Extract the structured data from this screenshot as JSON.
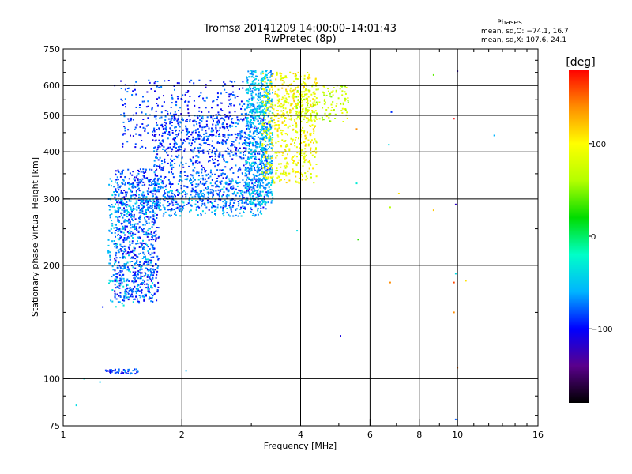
{
  "chart_data": {
    "type": "scatter",
    "title": "Tromsø 20141209  14:00:00–14:01:43",
    "subtitle": "RwPretec (8p)",
    "xlabel": "Frequency [MHz]",
    "ylabel": "Stationary phase Virtual Height [km]",
    "x_scale": "log",
    "y_scale": "log",
    "xlim": [
      1,
      16
    ],
    "ylim": [
      75,
      750
    ],
    "x_ticks": [
      1,
      2,
      4,
      6,
      8,
      10,
      16
    ],
    "x_tick_labels": [
      "1",
      "2",
      "4",
      "6",
      "8",
      "10",
      "16"
    ],
    "y_ticks": [
      75,
      100,
      200,
      300,
      400,
      500,
      600,
      750
    ],
    "y_tick_labels": [
      "75",
      "100",
      "200",
      "300",
      "400",
      "500",
      "600",
      "750"
    ],
    "grid": true,
    "phases": {
      "heading": "Phases",
      "line_o": "mean, sd,O: −74.1, 16.7",
      "line_x": "mean, sd,X: 107.6, 24.1"
    },
    "colorbar": {
      "label": "[deg]",
      "range": [
        -180,
        180
      ],
      "ticks": [
        100,
        0,
        -100
      ],
      "tick_labels": [
        "100",
        "0",
        "−100"
      ],
      "colors": [
        "#000000",
        "#5a008c",
        "#0000ff",
        "#00b4ff",
        "#00ffc8",
        "#00dc00",
        "#b4ff00",
        "#ffff00",
        "#ff8c00",
        "#ff0000"
      ]
    },
    "clusters": [
      {
        "name": "E-layer trace",
        "x": [
          1.28,
          1.55
        ],
        "y": [
          103,
          106
        ],
        "phase": -90,
        "count": 45
      },
      {
        "name": "Lower F trace",
        "x": [
          1.35,
          1.75
        ],
        "y": [
          160,
          360
        ],
        "phase": -90,
        "count": 650
      },
      {
        "name": "Lower F trace (cyan)",
        "x": [
          1.3,
          1.7
        ],
        "y": [
          155,
          300
        ],
        "phase": -55,
        "count": 250
      },
      {
        "name": "F2 ordinary band",
        "x": [
          1.3,
          3.2
        ],
        "y": [
          270,
          340
        ],
        "phase": -60,
        "count": 420
      },
      {
        "name": "F2 ordinary trace",
        "x": [
          1.7,
          3.3
        ],
        "y": [
          280,
          500
        ],
        "phase": -85,
        "count": 900
      },
      {
        "name": "F2 ordinary upper",
        "x": [
          1.4,
          2.9
        ],
        "y": [
          400,
          620
        ],
        "phase": -90,
        "count": 380
      },
      {
        "name": "F2 critical region",
        "x": [
          2.9,
          3.4
        ],
        "y": [
          290,
          660
        ],
        "phase": -55,
        "count": 700
      },
      {
        "name": "F2 extraordinary trace",
        "x": [
          3.2,
          4.4
        ],
        "y": [
          330,
          650
        ],
        "phase": 95,
        "count": 600
      },
      {
        "name": "F2 extraordinary tail",
        "x": [
          3.9,
          5.3
        ],
        "y": [
          480,
          600
        ],
        "phase": 70,
        "count": 140
      }
    ],
    "isolated_points": [
      {
        "x": 1.13,
        "y": 100,
        "phase": -30
      },
      {
        "x": 1.08,
        "y": 85,
        "phase": -40
      },
      {
        "x": 1.24,
        "y": 98,
        "phase": -50
      },
      {
        "x": 1.26,
        "y": 155,
        "phase": -95
      },
      {
        "x": 2.05,
        "y": 105,
        "phase": -60
      },
      {
        "x": 1.35,
        "y": 600,
        "phase": -100
      },
      {
        "x": 3.92,
        "y": 247,
        "phase": -40
      },
      {
        "x": 5.05,
        "y": 130,
        "phase": -110
      },
      {
        "x": 5.55,
        "y": 460,
        "phase": 140
      },
      {
        "x": 5.55,
        "y": 330,
        "phase": -30
      },
      {
        "x": 5.6,
        "y": 234,
        "phase": 30
      },
      {
        "x": 6.7,
        "y": 418,
        "phase": -40
      },
      {
        "x": 6.75,
        "y": 285,
        "phase": 60
      },
      {
        "x": 6.75,
        "y": 180,
        "phase": 140
      },
      {
        "x": 6.8,
        "y": 510,
        "phase": -90
      },
      {
        "x": 7.1,
        "y": 310,
        "phase": 110
      },
      {
        "x": 8.7,
        "y": 640,
        "phase": 40
      },
      {
        "x": 8.7,
        "y": 280,
        "phase": 120
      },
      {
        "x": 9.8,
        "y": 490,
        "phase": 180
      },
      {
        "x": 9.8,
        "y": 180,
        "phase": 160
      },
      {
        "x": 9.8,
        "y": 150,
        "phase": 140
      },
      {
        "x": 9.9,
        "y": 290,
        "phase": -120
      },
      {
        "x": 9.9,
        "y": 190,
        "phase": -40
      },
      {
        "x": 10.0,
        "y": 655,
        "phase": -120
      },
      {
        "x": 10.0,
        "y": 107,
        "phase": 150
      },
      {
        "x": 9.9,
        "y": 78,
        "phase": -80
      },
      {
        "x": 10.5,
        "y": 182,
        "phase": 110
      },
      {
        "x": 12.4,
        "y": 442,
        "phase": -60
      }
    ]
  }
}
